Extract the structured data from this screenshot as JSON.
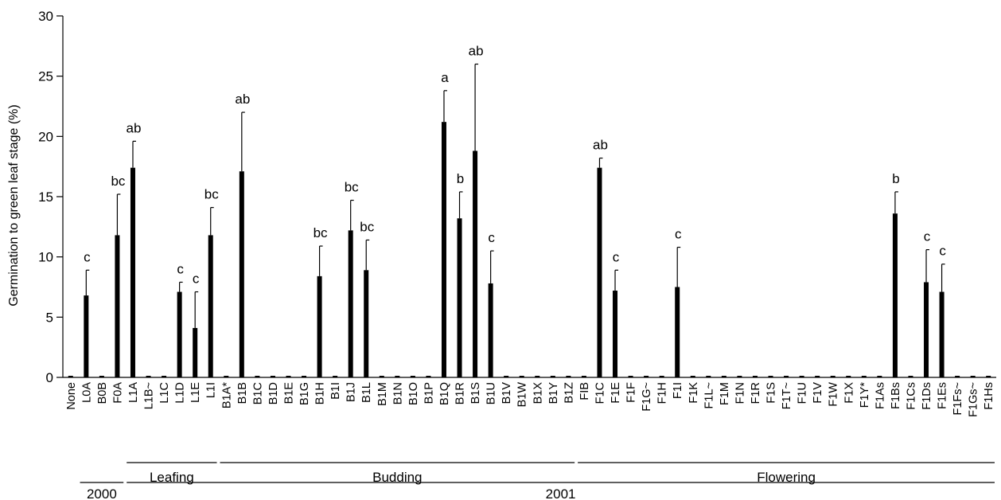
{
  "chart_data": {
    "type": "bar",
    "ylabel": "Germination to green leaf stage (%)",
    "ylim": [
      0,
      30
    ],
    "yticks": [
      0,
      5,
      10,
      15,
      20,
      25,
      30
    ],
    "grid": false,
    "categories": [
      "None",
      "L0A",
      "B0B",
      "F0A",
      "L1A",
      "L1B~",
      "L1C",
      "L1D",
      "L1E",
      "L1I",
      "B1A*",
      "B1B",
      "B1C",
      "B1D",
      "B1E",
      "B1G",
      "B1H",
      "B1I",
      "B1J",
      "B1L",
      "B1M",
      "B1N",
      "B1O",
      "B1P",
      "B1Q",
      "B1R",
      "B1S",
      "B1U",
      "B1V",
      "B1W",
      "B1X",
      "B1Y",
      "B1Z",
      "FIB",
      "F1C",
      "F1E",
      "F1F",
      "F1G~",
      "F1H",
      "F1I",
      "F1K",
      "F1L~",
      "F1M",
      "F1N",
      "F1R",
      "F1S",
      "F1T~",
      "F1U",
      "F1V",
      "F1W",
      "F1X",
      "F1Y*",
      "F1As",
      "F1Bs",
      "F1Cs",
      "F1Ds",
      "F1Es",
      "F1Fs~",
      "F1Gs~",
      "F1Hs"
    ],
    "values": [
      0,
      6.8,
      0,
      11.8,
      17.4,
      0,
      0,
      7.1,
      4.1,
      11.8,
      0,
      17.1,
      0,
      0,
      0,
      0,
      8.4,
      0,
      12.2,
      8.9,
      0,
      0,
      0,
      0,
      21.2,
      13.2,
      18.8,
      7.8,
      0,
      0,
      0,
      0,
      0,
      0,
      17.4,
      7.2,
      0,
      0,
      0,
      7.5,
      0,
      0,
      0,
      0,
      0,
      0,
      0,
      0,
      0,
      0,
      0,
      0,
      0,
      13.6,
      0,
      7.9,
      7.1,
      0,
      0,
      0
    ],
    "errors": [
      0,
      2.1,
      0,
      3.4,
      2.2,
      0,
      0,
      0.8,
      3.0,
      2.3,
      0,
      4.9,
      0,
      0,
      0,
      0,
      2.5,
      0,
      2.5,
      2.5,
      0,
      0,
      0,
      0,
      2.6,
      2.2,
      7.2,
      2.7,
      0,
      0,
      0,
      0,
      0,
      0,
      0.8,
      1.7,
      0,
      0,
      0,
      3.3,
      0,
      0,
      0,
      0,
      0,
      0,
      0,
      0,
      0,
      0,
      0,
      0,
      0,
      1.8,
      0,
      2.7,
      2.3,
      0,
      0,
      0
    ],
    "significance": [
      "",
      "c",
      "",
      "bc",
      "ab",
      "",
      "",
      "c",
      "c",
      "bc",
      "",
      "ab",
      "",
      "",
      "",
      "",
      "bc",
      "",
      "bc",
      "bc",
      "",
      "",
      "",
      "",
      "a",
      "b",
      "ab",
      "c",
      "",
      "",
      "",
      "",
      "",
      "",
      "ab",
      "c",
      "",
      "",
      "",
      "c",
      "",
      "",
      "",
      "",
      "",
      "",
      "",
      "",
      "",
      "",
      "",
      "",
      "",
      "b",
      "",
      "c",
      "c",
      "",
      "",
      ""
    ],
    "groups": [
      {
        "label": "Leafing",
        "from": 4,
        "to": 9
      },
      {
        "label": "Budding",
        "from": 10,
        "to": 32
      },
      {
        "label": "Flowering",
        "from": 33,
        "to": 59
      }
    ],
    "years": [
      {
        "label": "2000",
        "from": 1,
        "to": 3
      },
      {
        "label": "2001",
        "from": 4,
        "to": 59
      }
    ]
  }
}
